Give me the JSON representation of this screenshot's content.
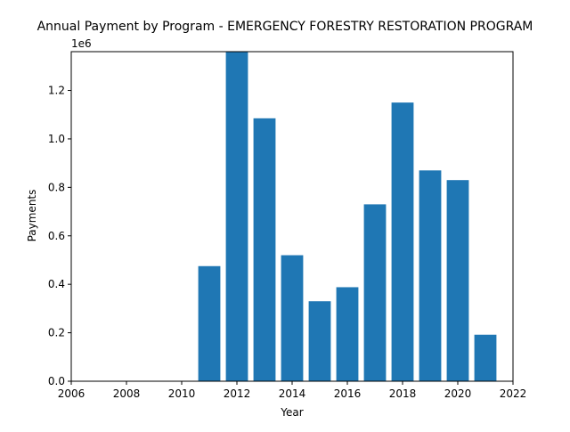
{
  "chart_data": {
    "type": "bar",
    "title": "Annual Payment by Program - EMERGENCY FORESTRY RESTORATION PROGRAM",
    "xlabel": "Year",
    "ylabel": "Payments",
    "y_offset_label": "1e6",
    "x": [
      2011,
      2012,
      2013,
      2014,
      2015,
      2016,
      2017,
      2018,
      2019,
      2020,
      2021
    ],
    "values": [
      475000,
      1360000,
      1085000,
      520000,
      330000,
      388000,
      730000,
      1150000,
      870000,
      830000,
      192000
    ],
    "xlim": [
      2006,
      2022
    ],
    "ylim": [
      0,
      1360000
    ],
    "xticks": [
      2006,
      2008,
      2010,
      2012,
      2014,
      2016,
      2018,
      2020,
      2022
    ],
    "xtick_labels": [
      "2006",
      "2008",
      "2010",
      "2012",
      "2014",
      "2016",
      "2018",
      "2020",
      "2022"
    ],
    "yticks": [
      0,
      200000,
      400000,
      600000,
      800000,
      1000000,
      1200000
    ],
    "ytick_labels": [
      "0.0",
      "0.2",
      "0.4",
      "0.6",
      "0.8",
      "1.0",
      "1.2"
    ],
    "bar_color": "#1f77b4",
    "grid": false,
    "legend": "none"
  }
}
